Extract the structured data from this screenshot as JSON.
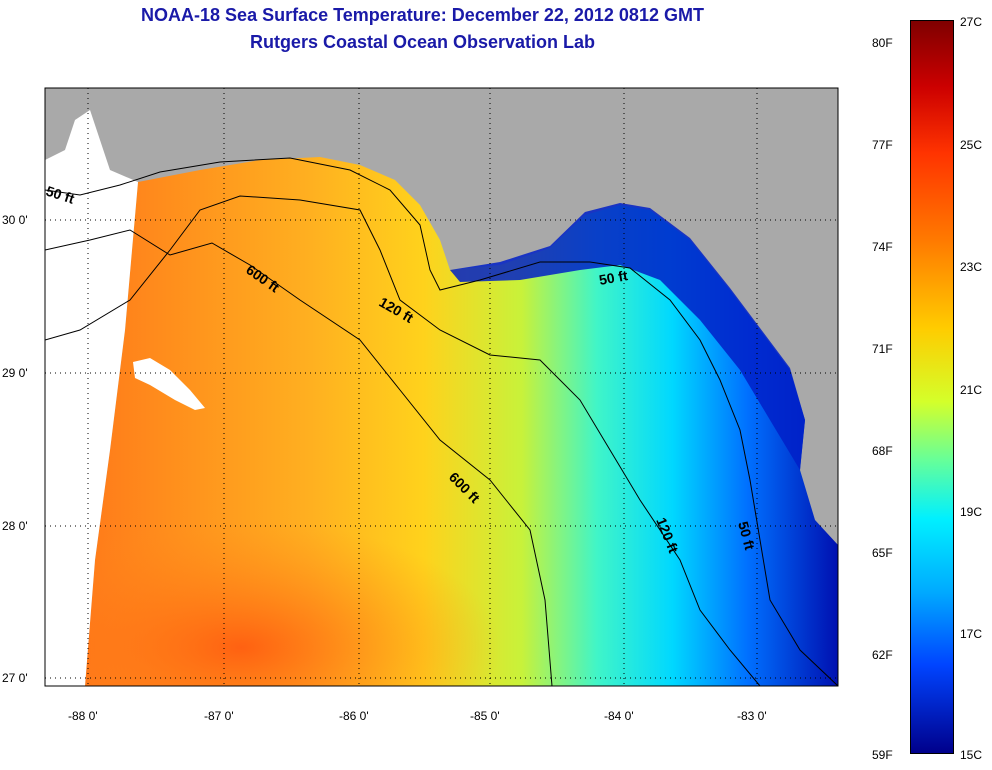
{
  "title": {
    "line1": "NOAA-18 Sea Surface Temperature:  December 22, 2012 0812 GMT",
    "line2": "Rutgers Coastal Ocean Observation Lab"
  },
  "map": {
    "lon_labels": [
      "-88 0'",
      "-87 0'",
      "-86 0'",
      "-85 0'",
      "-84 0'",
      "-83 0'"
    ],
    "lat_labels": [
      "30 0'",
      "29 0'",
      "28 0'",
      "27 0'"
    ],
    "contour_labels": [
      "50 ft",
      "600 ft",
      "120 ft",
      "50 ft",
      "600 ft",
      "120 ft",
      "50 ft"
    ],
    "colors": {
      "land": "#a9a9a9",
      "no_data": "#ffffff",
      "warm": "#ff8c1a",
      "cool": "#00e5ff",
      "cold": "#0000aa"
    }
  },
  "colorbar": {
    "fahrenheit": [
      "80F",
      "77F",
      "74F",
      "71F",
      "68F",
      "65F",
      "62F",
      "59F"
    ],
    "celsius": [
      "27C",
      "25C",
      "23C",
      "21C",
      "19C",
      "17C",
      "15C"
    ]
  }
}
